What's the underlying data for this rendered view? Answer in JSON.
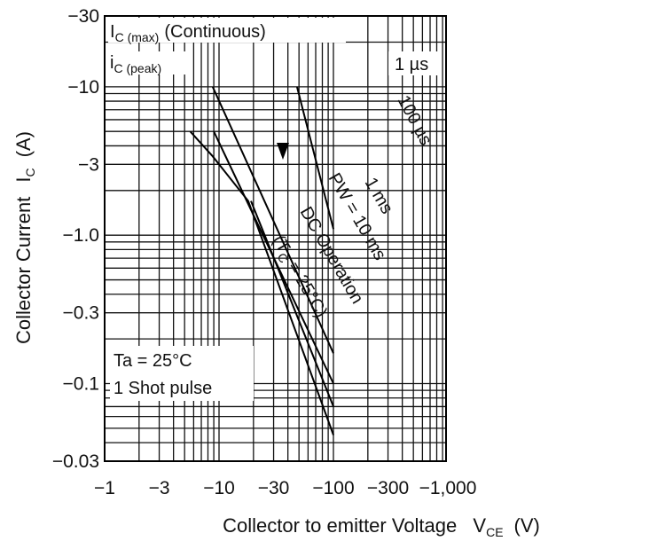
{
  "chart_data": {
    "type": "line",
    "xscale": "log",
    "yscale": "log",
    "xlim": [
      -1,
      -1000
    ],
    "ylim": [
      -0.03,
      -30
    ],
    "grid": true,
    "xlabel": "Collector to emitter Voltage",
    "xlabel_symbol": "V",
    "xlabel_sub": "CE",
    "xlabel_unit": "(V)",
    "ylabel": "Collector Current",
    "ylabel_symbol": "I",
    "ylabel_sub": "C",
    "ylabel_unit": "(A)",
    "x_ticks": [
      "−1",
      "−3",
      "−10",
      "−30",
      "−100",
      "−300",
      "−1,000"
    ],
    "x_tick_values": [
      -1,
      -3,
      -10,
      -30,
      -100,
      -300,
      -1000
    ],
    "y_ticks": [
      "−30",
      "−10",
      "−3",
      "−1.0",
      "−0.3",
      "−0.1",
      "−0.03"
    ],
    "y_tick_values": [
      -30,
      -10,
      -3,
      -1.0,
      -0.3,
      -0.1,
      -0.03
    ],
    "series": [
      {
        "name": "1 µs",
        "points": [
          [
            -48,
            -10
          ],
          [
            -100,
            -1.1
          ]
        ]
      },
      {
        "name": "100 µs",
        "points": [
          [
            -8.8,
            -10
          ],
          [
            -100,
            -0.16
          ]
        ]
      },
      {
        "name": "1 ms",
        "points": [
          [
            -9,
            -5
          ],
          [
            -100,
            -0.1
          ]
        ]
      },
      {
        "name": "PW = 10 ms",
        "points": [
          [
            -19,
            -1.7
          ],
          [
            -100,
            -0.07
          ]
        ]
      },
      {
        "name": "DC Operation (Tc = 25°C)",
        "points": [
          [
            -5.6,
            -5
          ],
          [
            -8.8,
            -3.4
          ],
          [
            -18,
            -1.7
          ],
          [
            -100,
            -0.045
          ]
        ]
      }
    ],
    "annotations": {
      "ic_max": {
        "symbol": "I",
        "sub": "C (max)",
        "text": "(Continuous)",
        "value": -24
      },
      "ic_peak": {
        "symbol": "i",
        "sub": "C (peak)",
        "value": -12
      },
      "label_1us": "1 µs",
      "label_100us": "100 µs",
      "label_1ms": "1 ms",
      "label_10ms": "PW = 10 ms",
      "label_dc": "DC Operation",
      "label_tc_open": "(T",
      "label_tc_sub": "C",
      "label_tc_close": " = 25°C)",
      "conditions": [
        "Ta = 25°C",
        "1 Shot pulse"
      ]
    }
  }
}
